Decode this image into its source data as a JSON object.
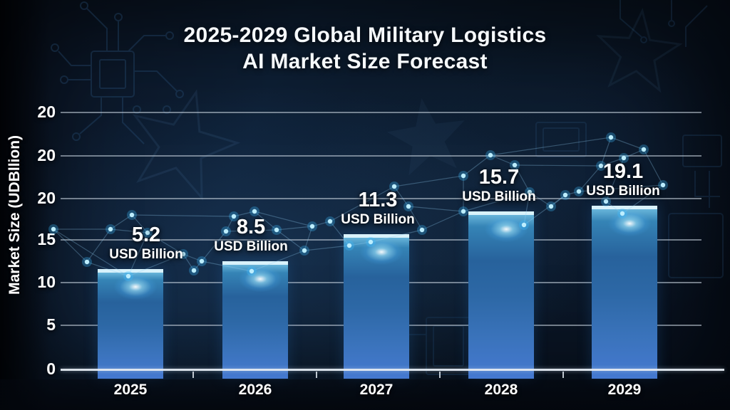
{
  "title": {
    "line1": "2025-2029 Global Military Logistics",
    "line2": "AI Market Size Forecast"
  },
  "chart_data": {
    "type": "bar",
    "title": "2025-2029 Global Military Logistics AI Market Size Forecast",
    "categories": [
      "2025",
      "2026",
      "2027",
      "2028",
      "2029"
    ],
    "values": [
      5.2,
      8.5,
      11.3,
      15.7,
      19.1
    ],
    "unit": "USD Billion",
    "xlabel": "",
    "ylabel": "Market Size (UDBllion)",
    "y_tick_labels": [
      "20",
      "20",
      "20",
      "15",
      "10",
      "5",
      "0"
    ],
    "ylim": [
      0,
      20
    ],
    "grid": true,
    "legend": "none",
    "notes": "dark navy tech-themed bar chart; each bar labeled with value and 'USD Billion'; glowing network nodes overlay"
  },
  "colors": {
    "background": "#0b1526",
    "bar_top_strip": "#d9f2fb",
    "bar_gradient_top": "#2f6ca6",
    "bar_gradient_bottom": "#4579d1",
    "gridline": "#cbd6e0",
    "axis_line": "#e4ebf2",
    "text": "#ffffff",
    "node_glow": "#9fe4ff"
  }
}
